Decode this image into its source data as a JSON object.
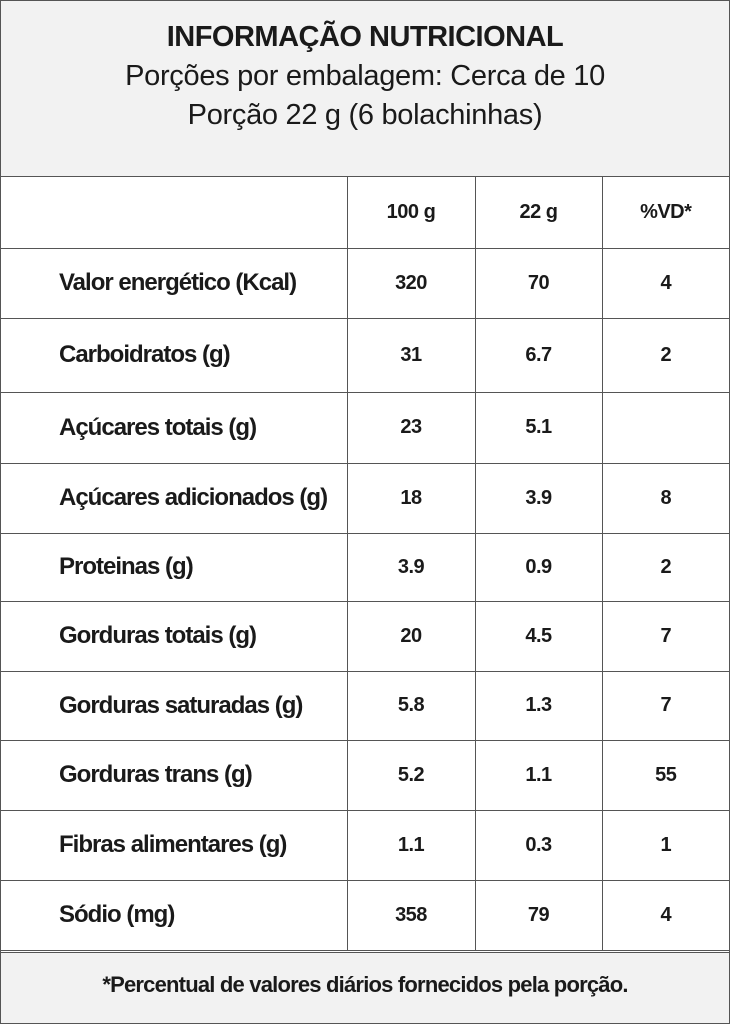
{
  "header": {
    "title": "INFORMAÇÃO NUTRICIONAL",
    "servings": "Porções por embalagem: Cerca de 10",
    "portion": "Porção 22 g (6 bolachinhas)"
  },
  "table": {
    "columns": [
      null,
      "100 g",
      "22 g",
      "%VD*"
    ],
    "rows": [
      [
        "Valor energético (Kcal)",
        "320",
        "70",
        "4"
      ],
      [
        "Carboidratos (g)",
        "31",
        "6.7",
        "2"
      ],
      [
        "Açúcares totais (g)",
        "23",
        "5.1",
        null
      ],
      [
        "Açúcares adicionados (g)",
        "18",
        "3.9",
        "8"
      ],
      [
        "Proteinas (g)",
        "3.9",
        "0.9",
        "2"
      ],
      [
        "Gorduras totais (g)",
        "20",
        "4.5",
        "7"
      ],
      [
        "Gorduras saturadas (g)",
        "5.8",
        "1.3",
        "7"
      ],
      [
        "Gorduras trans (g)",
        "5.2",
        "1.1",
        "55"
      ],
      [
        "Fibras alimentares (g)",
        "1.1",
        "0.3",
        "1"
      ],
      [
        "Sódio (mg)",
        "358",
        "79",
        "4"
      ]
    ]
  },
  "footer": "*Percentual de valores diários fornecidos pela porção."
}
